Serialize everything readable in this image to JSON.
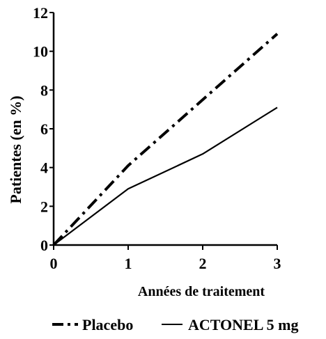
{
  "chart_data": {
    "type": "line",
    "title": "",
    "xlabel": "Années de traitement",
    "ylabel": "Patientes (en %)",
    "x": [
      0,
      1,
      2,
      3
    ],
    "xlim": [
      0,
      3
    ],
    "ylim": [
      0,
      12
    ],
    "xticks": [
      "0",
      "1",
      "2",
      "3"
    ],
    "yticks": [
      "0",
      "2",
      "4",
      "6",
      "8",
      "10",
      "12"
    ],
    "grid": false,
    "legend_position": "bottom",
    "series": [
      {
        "name": "Placebo",
        "values": [
          0,
          4.1,
          7.5,
          10.9
        ],
        "style": "dash-dot",
        "color": "#000000"
      },
      {
        "name": "ACTONEL 5 mg",
        "values": [
          0,
          2.9,
          4.7,
          7.1
        ],
        "style": "solid",
        "color": "#000000"
      }
    ]
  }
}
